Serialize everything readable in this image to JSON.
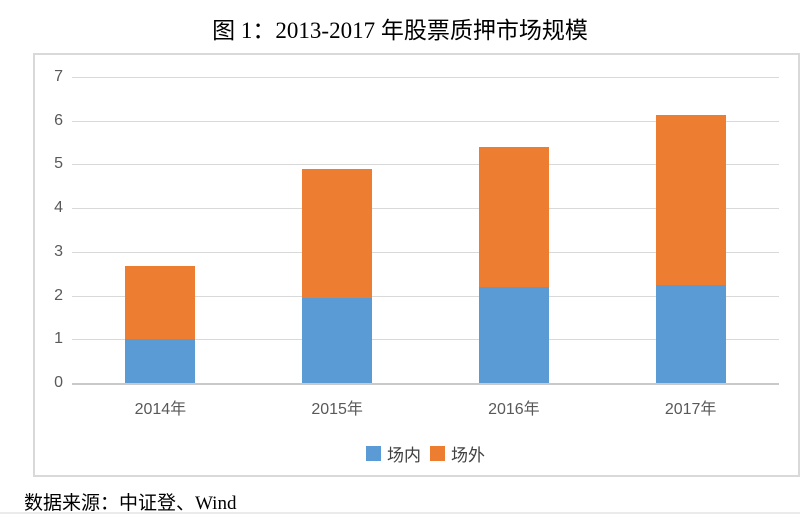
{
  "title": "图 1：2013-2017 年股票质押市场规模",
  "source_note": "数据来源：中证登、Wind",
  "colors": {
    "in_exchange": "#5B9BD5",
    "off_exchange": "#ED7D31",
    "gridline": "#D9D9D9",
    "axis_text": "#595959",
    "frame_border": "#D9D9D9"
  },
  "chart_data": {
    "type": "bar",
    "stacked": true,
    "title": "图 1：2013-2017 年股票质押市场规模",
    "categories": [
      "2014年",
      "2015年",
      "2016年",
      "2017年"
    ],
    "series": [
      {
        "key": "on-exchange",
        "name": "场内",
        "color": "#5B9BD5",
        "values": [
          1.0,
          1.95,
          2.2,
          2.25
        ]
      },
      {
        "key": "off-exchange",
        "name": "场外",
        "color": "#ED7D31",
        "values": [
          1.67,
          2.95,
          3.2,
          3.88
        ]
      }
    ],
    "ylim": [
      0,
      7
    ],
    "y_ticks": [
      0,
      1,
      2,
      3,
      4,
      5,
      6,
      7
    ],
    "grid": true,
    "legend_position": "bottom"
  }
}
